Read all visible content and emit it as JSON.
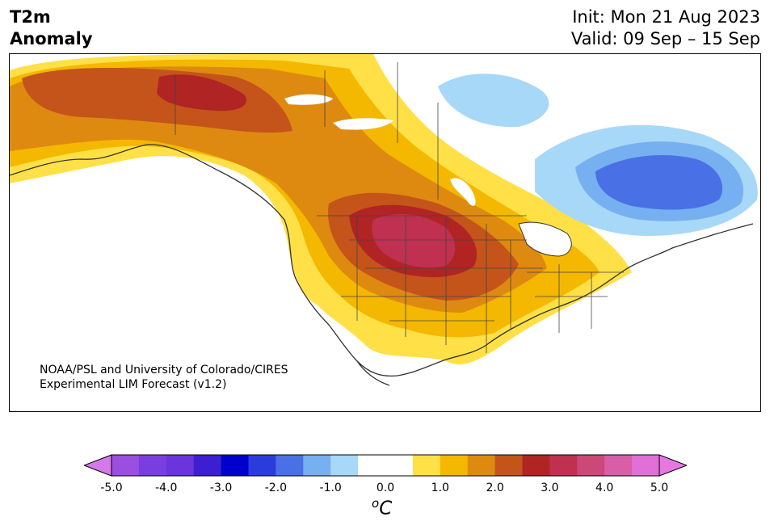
{
  "title": {
    "line1": "T2m",
    "line2": "Anomaly"
  },
  "init": {
    "line1": "Init: Mon 21 Aug 2023",
    "line2": "Valid: 09 Sep – 15 Sep"
  },
  "credit": {
    "line1": "NOAA/PSL and University of Colorado/CIRES",
    "line2": "Experimental LIM Forecast (v1.2)"
  },
  "colorbar": {
    "unit_main": "C",
    "unit_sup": "o",
    "ticks": [
      "-5.0",
      "-4.0",
      "-3.0",
      "-2.0",
      "-1.0",
      "0.0",
      "1.0",
      "2.0",
      "3.0",
      "4.0",
      "5.0"
    ],
    "bins": [
      {
        "from": -5.0,
        "to": -4.5,
        "color": "#9a4fe0"
      },
      {
        "from": -4.5,
        "to": -4.0,
        "color": "#7a3ee0"
      },
      {
        "from": -4.0,
        "to": -3.5,
        "color": "#6a35dc"
      },
      {
        "from": -3.5,
        "to": -3.0,
        "color": "#3c20d0"
      },
      {
        "from": -3.0,
        "to": -2.5,
        "color": "#0000cc"
      },
      {
        "from": -2.5,
        "to": -2.0,
        "color": "#2a3ddc"
      },
      {
        "from": -2.0,
        "to": -1.5,
        "color": "#4a70e6"
      },
      {
        "from": -1.5,
        "to": -1.0,
        "color": "#76b0f0"
      },
      {
        "from": -1.0,
        "to": -0.5,
        "color": "#a8d8f8"
      },
      {
        "from": -0.5,
        "to": 0.5,
        "color": "#ffffff"
      },
      {
        "from": 0.5,
        "to": 1.0,
        "color": "#ffe046"
      },
      {
        "from": 1.0,
        "to": 1.5,
        "color": "#f4b800"
      },
      {
        "from": 1.5,
        "to": 2.0,
        "color": "#de8a10"
      },
      {
        "from": 2.0,
        "to": 2.5,
        "color": "#c4541a"
      },
      {
        "from": 2.5,
        "to": 3.0,
        "color": "#b02424"
      },
      {
        "from": 3.0,
        "to": 3.5,
        "color": "#c03050"
      },
      {
        "from": 3.5,
        "to": 4.0,
        "color": "#cc4878"
      },
      {
        "from": 4.0,
        "to": 4.5,
        "color": "#d85ea8"
      },
      {
        "from": 4.5,
        "to": 5.0,
        "color": "#e070d8"
      }
    ],
    "under_color": "#d47ae8",
    "over_color": "#e878e0"
  }
}
